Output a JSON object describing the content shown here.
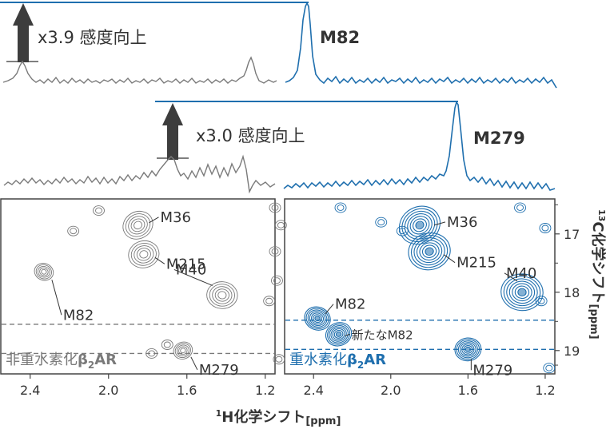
{
  "colors": {
    "gray": "#7a7a7a",
    "blue": "#1f6fae",
    "arrow": "#3d3d3d",
    "text": "#333333",
    "frame": "#444444"
  },
  "top_spectra": [
    {
      "arrow_label": "x3.9 感度向上",
      "peak_label": "M82"
    },
    {
      "arrow_label": "x3.0 感度向上",
      "peak_label": "M279"
    }
  ],
  "chart_data": {
    "type": "scatter",
    "description_free": true,
    "xlabel_prefix": "1",
    "xlabel_main": "H化学シフト",
    "xlabel_unit": "[ppm]",
    "ylabel_prefix": "13",
    "ylabel_main": "C化学シフト",
    "ylabel_unit": "[ppm]",
    "xlim": [
      2.55,
      1.15
    ],
    "ylim": [
      16.4,
      19.4
    ],
    "x_ticks": [
      2.4,
      2.0,
      1.6,
      1.2
    ],
    "x_tick_labels": [
      "2.4",
      "2.0",
      "1.6",
      "1.2"
    ],
    "y_ticks": [
      17,
      18,
      19
    ],
    "y_tick_labels": [
      "17",
      "18",
      "19"
    ],
    "panels": [
      {
        "caption_main": "非重水素化",
        "caption_beta": "β",
        "caption_sub": "2",
        "caption_tail": "AR",
        "color": "gray",
        "dashed_lines": [
          18.55,
          19.05
        ],
        "peaks": [
          {
            "x": 1.85,
            "y": 16.85,
            "label": "M36"
          },
          {
            "x": 1.82,
            "y": 17.35,
            "label": "M215"
          },
          {
            "x": 1.42,
            "y": 18.05,
            "label": "M40"
          },
          {
            "x": 2.33,
            "y": 17.65,
            "label": "M82"
          },
          {
            "x": 1.62,
            "y": 19.0,
            "label": "M279"
          }
        ]
      },
      {
        "caption_main": "重水素化",
        "caption_beta": "β",
        "caption_sub": "2",
        "caption_tail": "AR",
        "color": "blue",
        "dashed_lines": [
          18.48,
          18.98
        ],
        "peaks": [
          {
            "x": 1.85,
            "y": 16.85,
            "label": "M36"
          },
          {
            "x": 1.8,
            "y": 17.3,
            "label": "M215"
          },
          {
            "x": 1.32,
            "y": 18.0,
            "label": "M40"
          },
          {
            "x": 2.38,
            "y": 18.45,
            "label": "M82"
          },
          {
            "x": 2.27,
            "y": 18.72,
            "label": "新たなM82"
          },
          {
            "x": 1.6,
            "y": 18.98,
            "label": "M279"
          }
        ]
      }
    ]
  }
}
